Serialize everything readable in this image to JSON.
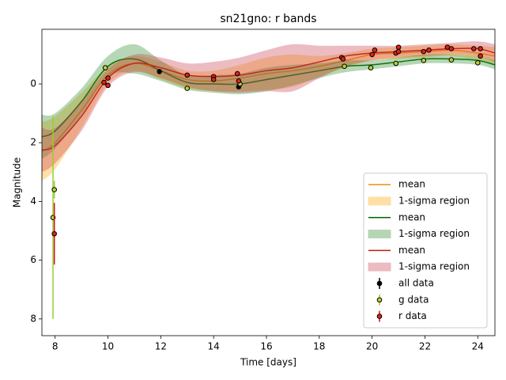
{
  "chart_data": {
    "type": "line",
    "title": "sn21gno: r bands",
    "xlabel": "Time [days]",
    "ylabel": "Magnitude",
    "xlim": [
      7.5,
      24.65
    ],
    "ylim": [
      8.57,
      -1.86
    ],
    "xticks": [
      8,
      10,
      12,
      14,
      16,
      18,
      20,
      22,
      24
    ],
    "yticks": [
      0,
      2,
      4,
      6,
      8
    ],
    "grid": false,
    "legend": "lower right",
    "x": [
      7.5,
      8,
      9,
      10,
      11,
      12,
      13,
      14,
      15,
      16,
      17,
      18,
      19,
      20,
      21,
      22,
      23,
      24,
      24.65
    ],
    "series": [
      {
        "name": "mean",
        "type": "line",
        "color": "#f0900c",
        "values": [
          2.3,
          2.0,
          0.9,
          -0.3,
          -0.7,
          -0.45,
          -0.15,
          -0.1,
          -0.2,
          -0.35,
          -0.45,
          -0.6,
          -0.8,
          -1.0,
          -1.05,
          -1.1,
          -1.15,
          -1.05,
          -0.95
        ]
      },
      {
        "name": "1-sigma region",
        "type": "band",
        "color": "#ffa500",
        "lower": [
          1.3,
          1.1,
          0.3,
          -0.6,
          -0.95,
          -0.75,
          -0.45,
          -0.45,
          -0.65,
          -0.9,
          -1.0,
          -0.95,
          -1.05,
          -1.2,
          -1.25,
          -1.3,
          -1.35,
          -1.3,
          -1.25
        ],
        "upper": [
          3.3,
          2.9,
          1.5,
          0.0,
          -0.45,
          -0.15,
          0.15,
          0.25,
          0.25,
          0.2,
          0.1,
          -0.25,
          -0.55,
          -0.8,
          -0.85,
          -0.9,
          -0.95,
          -0.8,
          -0.65
        ]
      },
      {
        "name": "mean",
        "type": "line",
        "color": "#006400",
        "values": [
          1.8,
          1.6,
          0.6,
          -0.6,
          -0.85,
          -0.45,
          -0.05,
          0.0,
          0.0,
          -0.15,
          -0.3,
          -0.45,
          -0.6,
          -0.65,
          -0.75,
          -0.85,
          -0.85,
          -0.8,
          -0.65
        ]
      },
      {
        "name": "1-sigma region",
        "type": "band",
        "color": "#2e8b2e",
        "lower": [
          1.05,
          1.0,
          0.15,
          -0.95,
          -1.35,
          -0.8,
          -0.3,
          -0.3,
          -0.35,
          -0.55,
          -0.65,
          -0.7,
          -0.8,
          -0.8,
          -0.9,
          -1.0,
          -1.0,
          -0.95,
          -0.8
        ],
        "upper": [
          2.55,
          2.2,
          1.05,
          -0.25,
          -0.35,
          -0.1,
          0.2,
          0.3,
          0.35,
          0.25,
          0.05,
          -0.2,
          -0.4,
          -0.5,
          -0.6,
          -0.7,
          -0.7,
          -0.65,
          -0.5
        ]
      },
      {
        "name": "mean",
        "type": "line",
        "color": "#c41a0e",
        "values": [
          2.25,
          2.1,
          1.1,
          -0.2,
          -0.7,
          -0.55,
          -0.3,
          -0.25,
          -0.3,
          -0.45,
          -0.55,
          -0.75,
          -0.95,
          -1.05,
          -1.1,
          -1.15,
          -1.2,
          -1.2,
          -1.05
        ]
      },
      {
        "name": "1-sigma region",
        "type": "band",
        "color": "#c8404f",
        "lower": [
          1.5,
          1.5,
          0.6,
          -0.5,
          -1.0,
          -0.9,
          -0.7,
          -0.75,
          -0.9,
          -1.15,
          -1.35,
          -1.3,
          -1.3,
          -1.3,
          -1.3,
          -1.35,
          -1.4,
          -1.45,
          -1.35
        ],
        "upper": [
          3.0,
          2.7,
          1.6,
          0.1,
          -0.4,
          -0.2,
          0.1,
          0.25,
          0.3,
          0.25,
          0.25,
          -0.2,
          -0.6,
          -0.8,
          -0.9,
          -0.95,
          -1.0,
          -0.95,
          -0.75
        ]
      },
      {
        "name": "all data",
        "type": "errorbar",
        "color": "#000000",
        "ecolor": "#000000",
        "x": [
          11.95,
          14.95
        ],
        "values": [
          -0.42,
          0.1
        ],
        "errors": [
          0.05,
          0.05
        ]
      },
      {
        "name": "g data",
        "type": "errorbar",
        "color": "#b5d334",
        "ecolor": "#9acd32",
        "x": [
          7.92,
          7.97,
          9.9,
          13.0,
          15.0,
          18.95,
          19.95,
          20.9,
          21.95,
          23.0,
          24.0
        ],
        "values": [
          4.55,
          3.6,
          -0.55,
          0.15,
          0.0,
          -0.6,
          -0.55,
          -0.7,
          -0.8,
          -0.82,
          -0.72
        ],
        "errors": [
          3.45,
          0.3,
          0.05,
          0.05,
          0.05,
          0.05,
          0.05,
          0.05,
          0.05,
          0.05,
          0.05
        ]
      },
      {
        "name": "r data",
        "type": "errorbar",
        "color": "#e0201c",
        "ecolor": "#d01010",
        "x": [
          7.97,
          9.85,
          10.0,
          10.0,
          13.0,
          14.0,
          14.0,
          14.9,
          14.95,
          18.85,
          18.9,
          20.0,
          20.1,
          20.9,
          21.0,
          21.0,
          21.95,
          22.15,
          22.85,
          23.0,
          23.85,
          24.1,
          24.1
        ],
        "values": [
          5.1,
          -0.05,
          0.05,
          -0.2,
          -0.3,
          -0.25,
          -0.15,
          -0.35,
          -0.1,
          -0.9,
          -0.85,
          -1.0,
          -1.15,
          -1.05,
          -1.1,
          -1.25,
          -1.1,
          -1.15,
          -1.25,
          -1.2,
          -1.2,
          -1.2,
          -0.95
        ],
        "errors": [
          1.05,
          0.05,
          0.05,
          0.05,
          0.05,
          0.05,
          0.05,
          0.05,
          0.05,
          0.05,
          0.05,
          0.05,
          0.05,
          0.05,
          0.05,
          0.05,
          0.05,
          0.05,
          0.05,
          0.05,
          0.05,
          0.05,
          0.05
        ]
      }
    ]
  }
}
